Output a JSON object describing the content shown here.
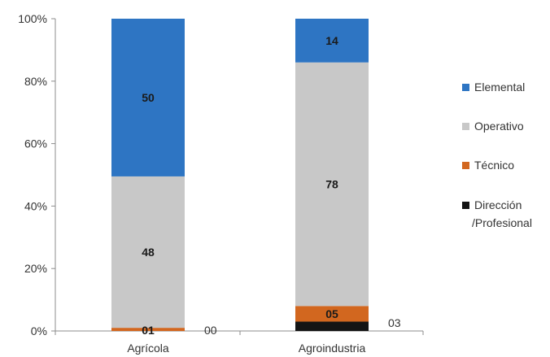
{
  "chart_data": {
    "type": "bar",
    "stacked": true,
    "percent": true,
    "categories": [
      "Agrícola",
      "Agroindustria"
    ],
    "series": [
      {
        "name": "Dirección /Profesional",
        "legend_lines": [
          "Dirección",
          "/Profesional"
        ],
        "color": "#141414",
        "values": [
          0,
          3
        ],
        "labels": [
          "00",
          "03"
        ]
      },
      {
        "name": "Técnico",
        "legend_lines": [
          "Técnico"
        ],
        "color": "#d2671f",
        "values": [
          1,
          5
        ],
        "labels": [
          "01",
          "05"
        ]
      },
      {
        "name": "Operativo",
        "legend_lines": [
          "Operativo"
        ],
        "color": "#c8c8c8",
        "values": [
          48,
          78
        ],
        "labels": [
          "48",
          "78"
        ]
      },
      {
        "name": "Elemental",
        "legend_lines": [
          "Elemental"
        ],
        "color": "#2e75c3",
        "values": [
          50,
          14
        ],
        "labels": [
          "50",
          "14"
        ]
      }
    ],
    "yticks": [
      "0%",
      "20%",
      "40%",
      "60%",
      "80%",
      "100%"
    ],
    "ylim": [
      0,
      100
    ],
    "legend": "right",
    "grid": false
  }
}
